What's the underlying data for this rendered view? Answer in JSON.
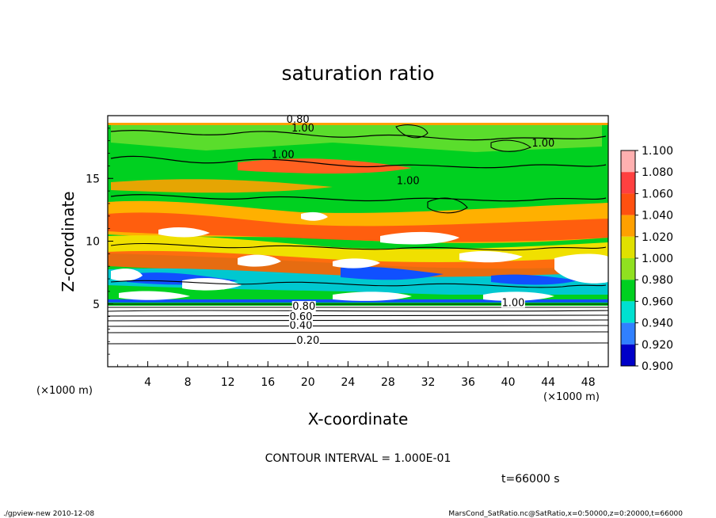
{
  "chart_data": {
    "type": "heatmap",
    "title": "saturation ratio",
    "xlabel": "X-coordinate",
    "ylabel": "Z-coordinate",
    "x_unit": "(×1000 m)",
    "y_unit": "(×1000 m)",
    "xlim": [
      0,
      50
    ],
    "ylim": [
      0,
      20
    ],
    "x_ticks": [
      4,
      8,
      12,
      16,
      20,
      24,
      28,
      32,
      36,
      40,
      44,
      48
    ],
    "y_ticks": [
      5,
      10,
      15
    ],
    "colorbar": {
      "levels": [
        "1.100",
        "1.080",
        "1.060",
        "1.040",
        "1.020",
        "1.000",
        "0.980",
        "0.960",
        "0.940",
        "0.920",
        "0.900"
      ],
      "colors": [
        "#ffb0b0",
        "#ff4040",
        "#ff5010",
        "#ffa000",
        "#e0e000",
        "#90e020",
        "#00d020",
        "#00e0d0",
        "#3080ff",
        "#0000c8",
        "#6000a0"
      ]
    },
    "contour_labels": [
      {
        "text": "0.20",
        "x": 20,
        "z": 1.9
      },
      {
        "text": "0.40",
        "x": 19.3,
        "z": 3.1
      },
      {
        "text": "0.60",
        "x": 19.3,
        "z": 3.8
      },
      {
        "text": "0.80",
        "x": 19.6,
        "z": 4.6
      },
      {
        "text": "1.00",
        "x": 40.5,
        "z": 4.9
      },
      {
        "text": "1.00",
        "x": 17.5,
        "z": 16.7
      },
      {
        "text": "1.00",
        "x": 30,
        "z": 14.6
      },
      {
        "text": "1.00",
        "x": 43.5,
        "z": 17.6
      },
      {
        "text": "1.00",
        "x": 19.5,
        "z": 18.8
      },
      {
        "text": "0.80",
        "x": 19,
        "z": 19.5
      }
    ],
    "contour_interval": "CONTOUR INTERVAL = 1.000E-01",
    "time_label": "t=66000 s"
  },
  "footer": {
    "left": "./gpview-new   2010-12-08",
    "right": "MarsCond_SatRatio.nc@SatRatio,x=0:50000,z=0:20000,t=66000"
  }
}
